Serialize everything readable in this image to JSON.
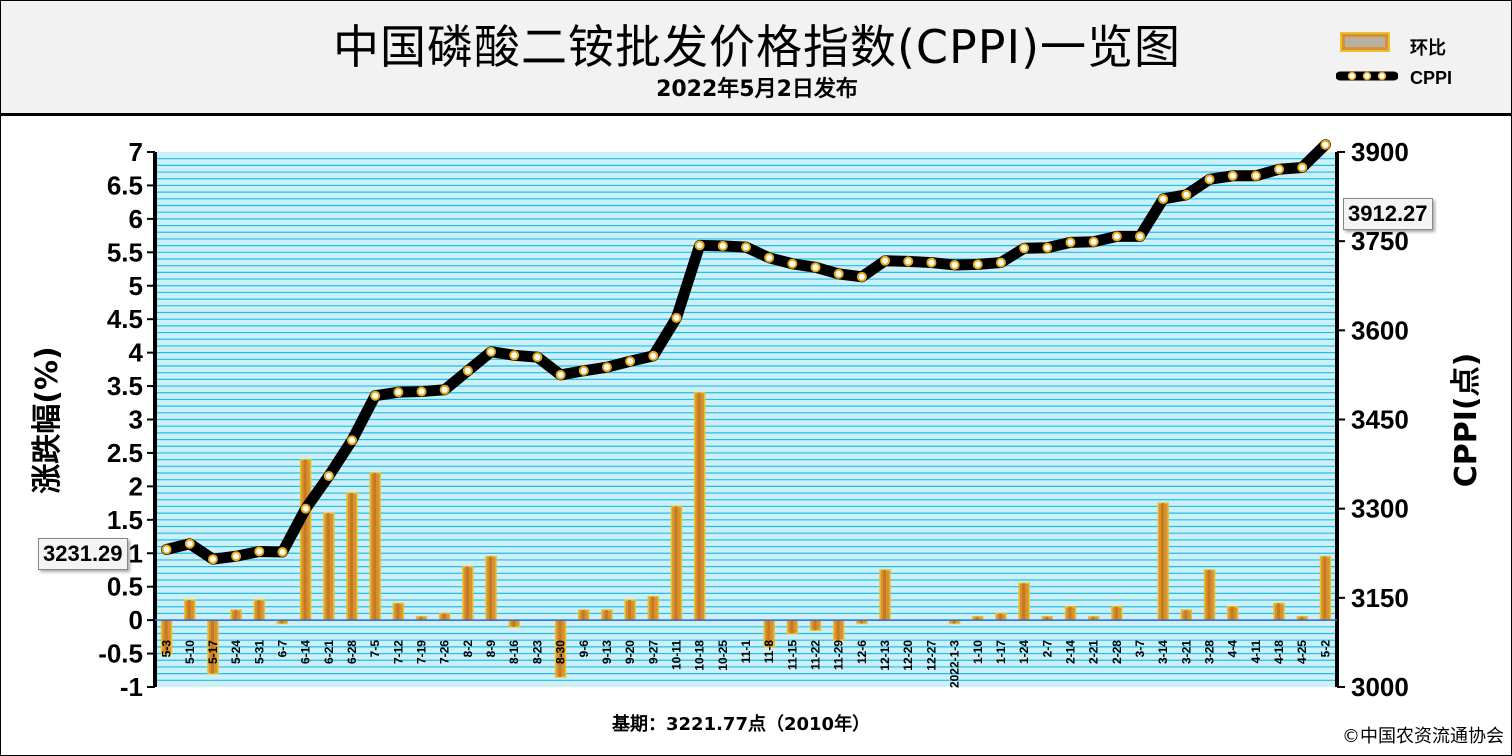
{
  "header": {
    "title": "中国磷酸二铵批发价格指数(CPPI)一览图",
    "subtitle": "2022年5月2日发布"
  },
  "legend": {
    "bar_label": "环比",
    "line_label": "CPPI"
  },
  "footer": {
    "base_note": "基期：3221.77点（2010年）",
    "copyright": "©中国农资流通协会"
  },
  "callouts": {
    "start_value": "3231.29",
    "end_value": "3912.27"
  },
  "colors": {
    "plot_bg": "#cdeff8",
    "grid": "#1ec0e8",
    "bar": "#d99034",
    "bar_edge": "#e8c22a",
    "line": "#000000",
    "marker": "#e6a817"
  },
  "chart_data": {
    "type": "bar",
    "ylabel": "涨跌幅(%)",
    "ylabel_right": "CPPI(点)",
    "ylim": [
      -1,
      7
    ],
    "ylim_right": [
      3000,
      3900
    ],
    "yticks": [
      "7",
      "6.5",
      "6",
      "5.5",
      "5",
      "4.5",
      "4",
      "3.5",
      "3",
      "2.5",
      "2",
      "1.5",
      "1",
      "0.5",
      "0",
      "-0.5",
      "-1"
    ],
    "yticks_right": [
      "3000",
      "3150",
      "3300",
      "3450",
      "3600",
      "3750",
      "3900"
    ],
    "grid": true,
    "legend_position": "top-right",
    "categories": [
      "5-3",
      "5-10",
      "5-17",
      "5-24",
      "5-31",
      "6-7",
      "6-14",
      "6-21",
      "6-28",
      "7-5",
      "7-12",
      "7-19",
      "7-26",
      "8-2",
      "8-9",
      "8-16",
      "8-23",
      "8-30",
      "9-6",
      "9-13",
      "9-20",
      "9-27",
      "10-11",
      "10-18",
      "10-25",
      "11-1",
      "11-8",
      "11-15",
      "11-22",
      "11-29",
      "12-6",
      "12-13",
      "12-20",
      "12-27",
      "2022-1-3",
      "1-10",
      "1-17",
      "1-24",
      "2-7",
      "2-14",
      "2-21",
      "2-28",
      "3-7",
      "3-14",
      "3-21",
      "3-28",
      "4-4",
      "4-11",
      "4-18",
      "4-25",
      "5-2"
    ],
    "series": [
      {
        "name": "环比",
        "values": [
          -0.5,
          0.3,
          -0.8,
          0.15,
          0.3,
          -0.05,
          2.4,
          1.6,
          1.9,
          2.2,
          0.25,
          0.05,
          0.1,
          0.8,
          0.95,
          -0.1,
          0,
          -0.85,
          0.15,
          0.15,
          0.3,
          0.35,
          1.7,
          3.4,
          0,
          0,
          -0.4,
          -0.2,
          -0.15,
          -0.3,
          -0.05,
          0.75,
          0,
          0,
          -0.05,
          0.05,
          0.1,
          0.55,
          0.05,
          0.2,
          0.05,
          0.2,
          0,
          1.75,
          0.15,
          0.75,
          0.2,
          0,
          0.25,
          0.05,
          0.95
        ]
      },
      {
        "name": "CPPI",
        "values": [
          3231.29,
          3241,
          3215,
          3220,
          3228,
          3227,
          3300,
          3355,
          3415,
          3490,
          3496,
          3497,
          3500,
          3532,
          3564,
          3558,
          3555,
          3525,
          3532,
          3538,
          3548,
          3557,
          3621,
          3743,
          3742,
          3740,
          3722,
          3712,
          3706,
          3695,
          3690,
          3717,
          3716,
          3714,
          3710,
          3711,
          3714,
          3738,
          3739,
          3748,
          3749,
          3758,
          3758,
          3821,
          3828,
          3854,
          3860,
          3860,
          3871,
          3874,
          3912.27
        ]
      }
    ]
  }
}
